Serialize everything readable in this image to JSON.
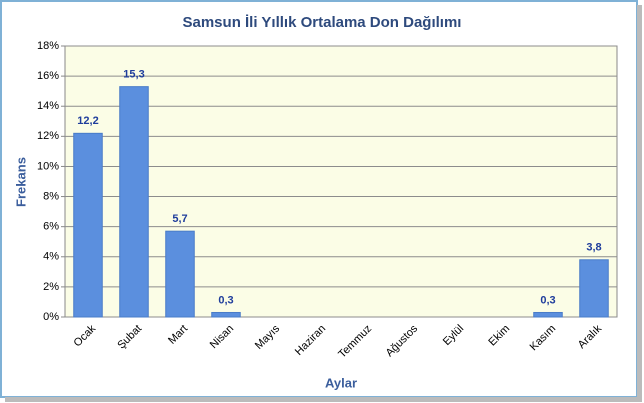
{
  "chart_data": {
    "type": "bar",
    "title": "Samsun İli Yıllık Ortalama Don Dağılımı",
    "x_label": "Aylar",
    "y_label": "Frekans",
    "categories": [
      "Ocak",
      "Şubat",
      "Mart",
      "Nisan",
      "Mayıs",
      "Haziran",
      "Temmuz",
      "Ağustos",
      "Eylül",
      "Ekim",
      "Kasım",
      "Aralık"
    ],
    "values": [
      12.2,
      15.3,
      5.7,
      0.3,
      null,
      null,
      null,
      null,
      null,
      null,
      0.3,
      3.8
    ],
    "value_labels": [
      "12,2",
      "15,3",
      "5,7",
      "0,3",
      null,
      null,
      null,
      null,
      null,
      null,
      "0,3",
      "3,8"
    ],
    "color": "#5b8fde",
    "ylim": [
      0,
      18
    ],
    "yticks": [
      {
        "value": 0,
        "label": "0%"
      },
      {
        "value": 2,
        "label": "2%"
      },
      {
        "value": 4,
        "label": "4%"
      },
      {
        "value": 6,
        "label": "6%"
      },
      {
        "value": 8,
        "label": "8%"
      },
      {
        "value": 10,
        "label": "10%"
      },
      {
        "value": 12,
        "label": "12%"
      },
      {
        "value": 14,
        "label": "14%"
      },
      {
        "value": 16,
        "label": "16%"
      },
      {
        "value": 18,
        "label": "18%"
      }
    ],
    "grid": true
  }
}
